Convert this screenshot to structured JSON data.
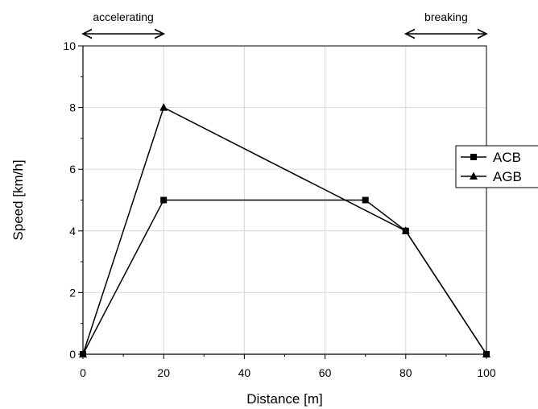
{
  "chart_data": {
    "type": "line",
    "xlabel": "Distance [m]",
    "ylabel": "Speed [km/h]",
    "xlim": [
      0,
      100
    ],
    "ylim": [
      0,
      10
    ],
    "x_ticks": [
      0,
      20,
      40,
      60,
      80,
      100
    ],
    "y_ticks": [
      0,
      2,
      4,
      6,
      8,
      10
    ],
    "grid": true,
    "legend_position": "right",
    "series": [
      {
        "name": "ACB",
        "marker": "square",
        "color": "#000000",
        "x": [
          0,
          20,
          70,
          80,
          100
        ],
        "y": [
          0,
          5,
          5,
          4,
          0
        ]
      },
      {
        "name": "AGB",
        "marker": "triangle",
        "color": "#000000",
        "x": [
          0,
          20,
          80,
          100
        ],
        "y": [
          0,
          8,
          4,
          0
        ]
      }
    ],
    "annotations": [
      {
        "text": "accelerating",
        "x_range": [
          0,
          20
        ]
      },
      {
        "text": "breaking",
        "x_range": [
          80,
          100
        ]
      }
    ]
  }
}
